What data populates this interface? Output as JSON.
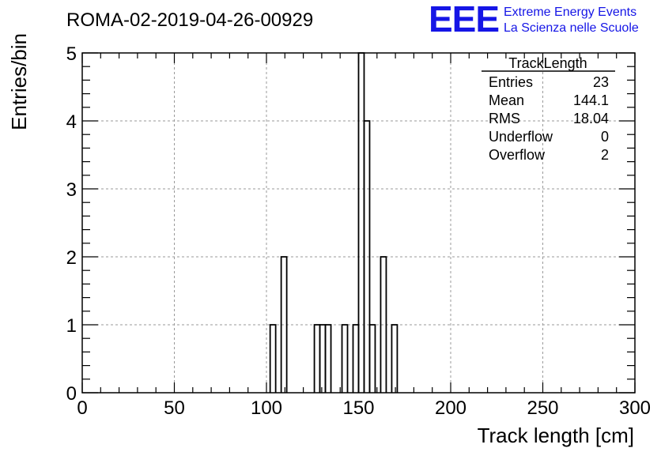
{
  "header": {
    "run_title": "ROMA-02-2019-04-26-00929",
    "logo_text": "EEE",
    "org_line1": "Extreme Energy Events",
    "org_line2": "La Scienza nelle Scuole"
  },
  "colors": {
    "logo": "#1515e6",
    "histogram": "#000000",
    "grid": "#9a9a9a"
  },
  "stats_box": {
    "title": "TrackLength",
    "rows": [
      {
        "label": "Entries",
        "value": "23"
      },
      {
        "label": "Mean",
        "value": "144.1"
      },
      {
        "label": "RMS",
        "value": "18.04"
      },
      {
        "label": "Underflow",
        "value": "0"
      },
      {
        "label": "Overflow",
        "value": "2"
      }
    ]
  },
  "chart_data": {
    "type": "bar",
    "histogram_style": "step",
    "xlabel": "Track length [cm]",
    "ylabel": "Entries/bin",
    "xlim": [
      0,
      300
    ],
    "ylim": [
      0,
      5
    ],
    "grid": true,
    "bin_width": 3,
    "x_ticks": [
      0,
      50,
      100,
      150,
      200,
      250,
      300
    ],
    "y_ticks": [
      0,
      1,
      2,
      3,
      4,
      5
    ],
    "bins": [
      {
        "x0": 102,
        "x1": 105,
        "count": 1
      },
      {
        "x0": 108,
        "x1": 111,
        "count": 2
      },
      {
        "x0": 126,
        "x1": 129,
        "count": 1
      },
      {
        "x0": 129,
        "x1": 132,
        "count": 1
      },
      {
        "x0": 132,
        "x1": 135,
        "count": 1
      },
      {
        "x0": 141,
        "x1": 144,
        "count": 1
      },
      {
        "x0": 147,
        "x1": 150,
        "count": 1
      },
      {
        "x0": 150,
        "x1": 153,
        "count": 5
      },
      {
        "x0": 153,
        "x1": 156,
        "count": 4
      },
      {
        "x0": 156,
        "x1": 159,
        "count": 1
      },
      {
        "x0": 162,
        "x1": 165,
        "count": 2
      },
      {
        "x0": 168,
        "x1": 171,
        "count": 1
      }
    ]
  }
}
